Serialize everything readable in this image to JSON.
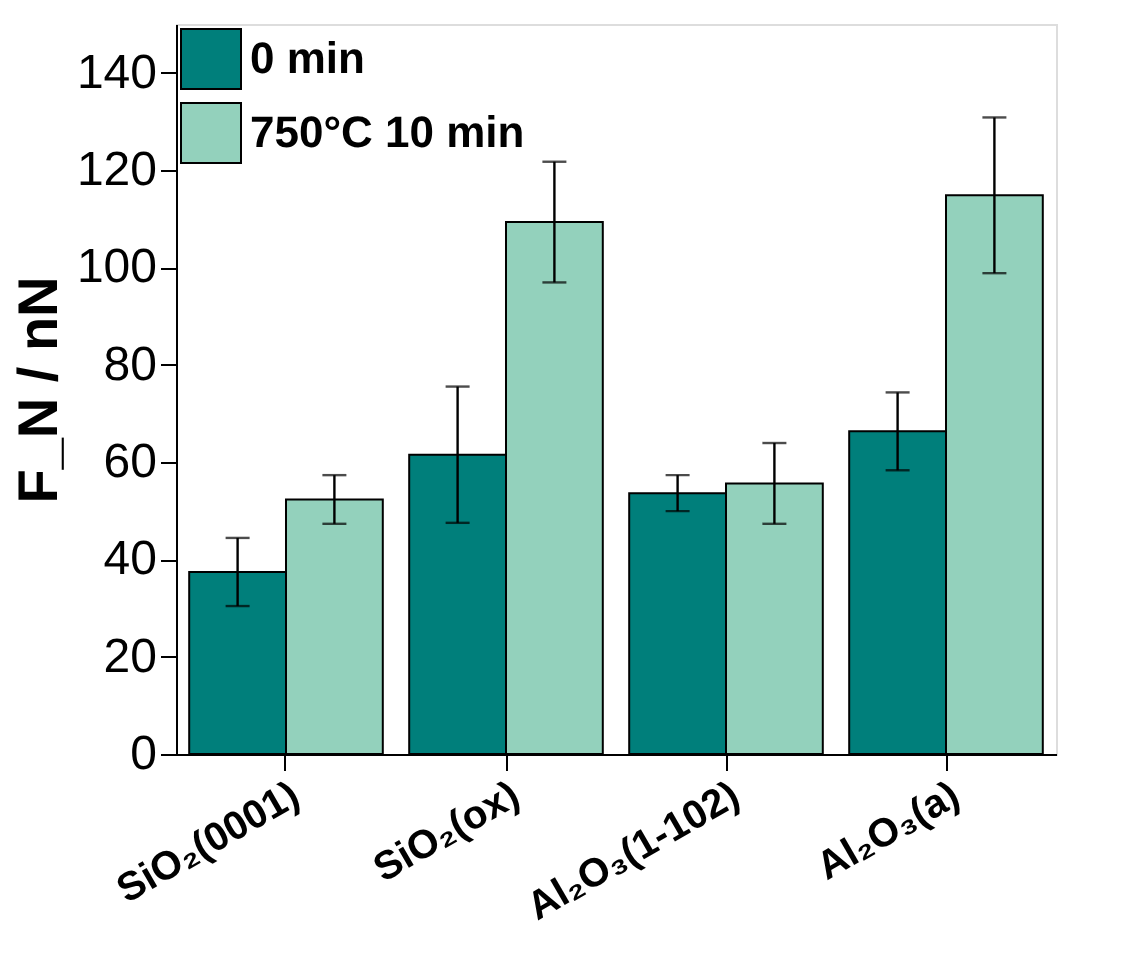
{
  "chart_data": {
    "type": "bar",
    "ylabel": "F_N / nN",
    "categories": [
      "SiO₂(0001)",
      "SiO₂(ox)",
      "Al₂O₃(1-102)",
      "Al₂O₃(a)"
    ],
    "series": [
      {
        "name": "0 min",
        "color": "#007f7b",
        "values": [
          37.4,
          61.5,
          53.6,
          66.3
        ],
        "errors": [
          7,
          14,
          3.7,
          8
        ]
      },
      {
        "name": "750°C 10 min",
        "color": "#93d1bc",
        "values": [
          52.3,
          109.3,
          55.6,
          114.8
        ],
        "errors": [
          5,
          12.4,
          8.3,
          16
        ]
      }
    ],
    "ylim": [
      0,
      150
    ],
    "yticks": [
      0,
      20,
      40,
      60,
      80,
      100,
      120,
      140
    ],
    "grid": false,
    "legend": "top left"
  }
}
